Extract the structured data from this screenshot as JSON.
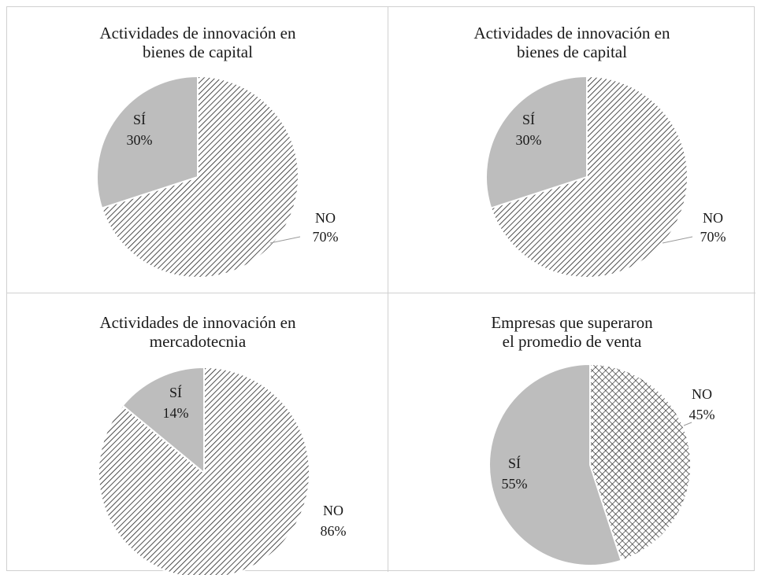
{
  "colors": {
    "solid_gray": "#bdbdbd",
    "hatch_stroke": "#222222",
    "edge": "#ffffff",
    "divider": "#d0d0d0",
    "leader": "#9a9a9a"
  },
  "chart_data": [
    {
      "type": "pie",
      "title_lines": [
        "Actividades de innovación en",
        "bienes de capital"
      ],
      "slices": [
        {
          "label": "NO",
          "value": 70,
          "pct_text": "70%",
          "pattern": "diag-hatch"
        },
        {
          "label": "SÍ",
          "value": 30,
          "pct_text": "30%",
          "pattern": "solid"
        }
      ]
    },
    {
      "type": "pie",
      "title_lines": [
        "Actividades de innovación en",
        "bienes de capital"
      ],
      "slices": [
        {
          "label": "NO",
          "value": 70,
          "pct_text": "70%",
          "pattern": "diag-hatch"
        },
        {
          "label": "SÍ",
          "value": 30,
          "pct_text": "30%",
          "pattern": "solid"
        }
      ]
    },
    {
      "type": "pie",
      "title_lines": [
        "Actividades de innovación en",
        "mercadotecnia"
      ],
      "slices": [
        {
          "label": "NO",
          "value": 86,
          "pct_text": "86%",
          "pattern": "diag-hatch"
        },
        {
          "label": "SÍ",
          "value": 14,
          "pct_text": "14%",
          "pattern": "solid"
        }
      ]
    },
    {
      "type": "pie",
      "title_lines": [
        "Empresas que superaron",
        "el promedio de venta"
      ],
      "slices": [
        {
          "label": "NO",
          "value": 45,
          "pct_text": "45%",
          "pattern": "cross-hatch"
        },
        {
          "label": "SÍ",
          "value": 55,
          "pct_text": "55%",
          "pattern": "solid"
        }
      ]
    }
  ]
}
